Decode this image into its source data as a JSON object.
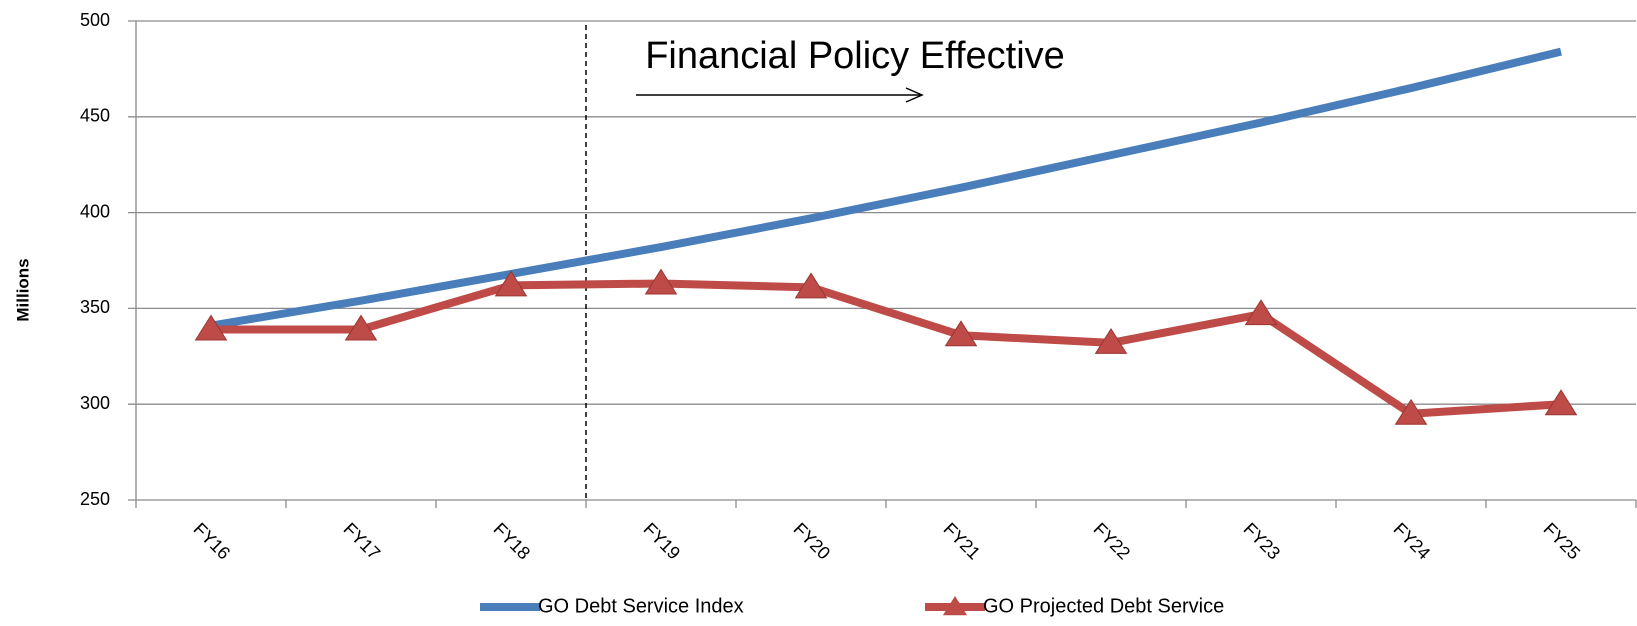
{
  "chart_data": {
    "type": "line",
    "annotation": "Financial Policy Effective",
    "y_label": "Millions",
    "categories": [
      "FY16",
      "FY17",
      "FY18",
      "FY19",
      "FY20",
      "FY21",
      "FY22",
      "FY23",
      "FY24",
      "FY25"
    ],
    "series": [
      {
        "name": "GO Debt Service Index",
        "color": "#4a7ebb",
        "values": [
          341,
          354,
          368,
          382,
          397,
          413,
          430,
          447,
          465,
          484
        ]
      },
      {
        "name": "GO Projected Debt Service",
        "color": "#be4b48",
        "marker": "triangle",
        "values": [
          339,
          339,
          362,
          363,
          361,
          336,
          332,
          347,
          295,
          300
        ]
      }
    ],
    "ylim": [
      250,
      500
    ],
    "yticks": [
      250,
      300,
      350,
      400,
      450,
      500
    ],
    "grid": true
  }
}
